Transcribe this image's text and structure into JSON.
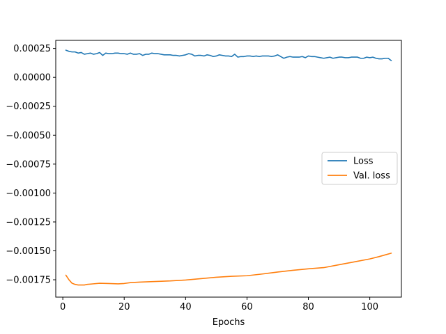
{
  "chart_data": {
    "type": "line",
    "title": "",
    "xlabel": "Epochs",
    "ylabel": "",
    "xlim": [
      -2.3,
      110.3
    ],
    "ylim": [
      -0.0019,
      0.00032
    ],
    "x_ticks": [
      0,
      20,
      40,
      60,
      80,
      100
    ],
    "x_tick_labels": [
      "0",
      "20",
      "40",
      "60",
      "80",
      "100"
    ],
    "y_ticks": [
      0.00025,
      0.0,
      -0.00025,
      -0.0005,
      -0.00075,
      -0.001,
      -0.00125,
      -0.0015,
      -0.00175
    ],
    "y_tick_labels": [
      "0.00025",
      "0.00000",
      "−0.00025",
      "−0.00050",
      "−0.00075",
      "−0.00100",
      "−0.00125",
      "−0.00150",
      "−0.00175"
    ],
    "grid": false,
    "legend_position": "center-right",
    "series": [
      {
        "name": "Loss",
        "color": "#1f77b4",
        "x": [
          1,
          2,
          3,
          4,
          5,
          6,
          7,
          8,
          9,
          10,
          11,
          12,
          13,
          14,
          15,
          16,
          17,
          18,
          19,
          20,
          21,
          22,
          23,
          24,
          25,
          26,
          27,
          28,
          29,
          30,
          31,
          32,
          33,
          34,
          35,
          36,
          37,
          38,
          39,
          40,
          41,
          42,
          43,
          44,
          45,
          46,
          47,
          48,
          49,
          50,
          51,
          52,
          53,
          54,
          55,
          56,
          57,
          58,
          59,
          60,
          61,
          62,
          63,
          64,
          65,
          66,
          67,
          68,
          69,
          70,
          71,
          72,
          73,
          74,
          75,
          76,
          77,
          78,
          79,
          80,
          81,
          82,
          83,
          84,
          85,
          86,
          87,
          88,
          89,
          90,
          91,
          92,
          93,
          94,
          95,
          96,
          97,
          98,
          99,
          100,
          101,
          102,
          103,
          104,
          105,
          106,
          107
        ],
        "values": [
          0.000235,
          0.000225,
          0.00022,
          0.00022,
          0.00021,
          0.000215,
          0.0002,
          0.000205,
          0.00021,
          0.0002,
          0.000205,
          0.000215,
          0.00019,
          0.00021,
          0.000205,
          0.000205,
          0.00021,
          0.00021,
          0.000205,
          0.000205,
          0.0002,
          0.00021,
          0.0002,
          0.0002,
          0.000205,
          0.00019,
          0.0002,
          0.0002,
          0.00021,
          0.000205,
          0.000205,
          0.0002,
          0.000195,
          0.000195,
          0.000195,
          0.00019,
          0.00019,
          0.000185,
          0.00019,
          0.000195,
          0.000205,
          0.0002,
          0.000185,
          0.00019,
          0.00019,
          0.000185,
          0.000195,
          0.00019,
          0.00018,
          0.000185,
          0.000195,
          0.00019,
          0.000185,
          0.000185,
          0.00018,
          0.0002,
          0.000175,
          0.00018,
          0.00018,
          0.000185,
          0.000185,
          0.00018,
          0.000185,
          0.00018,
          0.000185,
          0.000185,
          0.000185,
          0.00018,
          0.000185,
          0.000195,
          0.00018,
          0.000165,
          0.000175,
          0.00018,
          0.000175,
          0.000175,
          0.000175,
          0.00018,
          0.00017,
          0.000185,
          0.00018,
          0.00018,
          0.000175,
          0.00017,
          0.000165,
          0.00017,
          0.000175,
          0.000165,
          0.00017,
          0.000175,
          0.000175,
          0.00017,
          0.00017,
          0.000175,
          0.000175,
          0.000175,
          0.000165,
          0.000165,
          0.000175,
          0.00017,
          0.000175,
          0.000165,
          0.00016,
          0.00016,
          0.000165,
          0.000165,
          0.000145
        ]
      },
      {
        "name": "Val. loss",
        "color": "#ff7f0e",
        "x": [
          1,
          2,
          3,
          4,
          5,
          6,
          7,
          8,
          10,
          12,
          15,
          18,
          20,
          22,
          25,
          30,
          35,
          40,
          45,
          50,
          55,
          60,
          65,
          70,
          75,
          80,
          85,
          90,
          95,
          100,
          103,
          105,
          107
        ],
        "values": [
          -0.00171,
          -0.00175,
          -0.00178,
          -0.00179,
          -0.001795,
          -0.001795,
          -0.001795,
          -0.00179,
          -0.001785,
          -0.00178,
          -0.001782,
          -0.001785,
          -0.001782,
          -0.001775,
          -0.00177,
          -0.001765,
          -0.00176,
          -0.001752,
          -0.00174,
          -0.001728,
          -0.00172,
          -0.001715,
          -0.0017,
          -0.001683,
          -0.001668,
          -0.001655,
          -0.001645,
          -0.00162,
          -0.001595,
          -0.00157,
          -0.00155,
          -0.001535,
          -0.00152
        ]
      }
    ]
  }
}
